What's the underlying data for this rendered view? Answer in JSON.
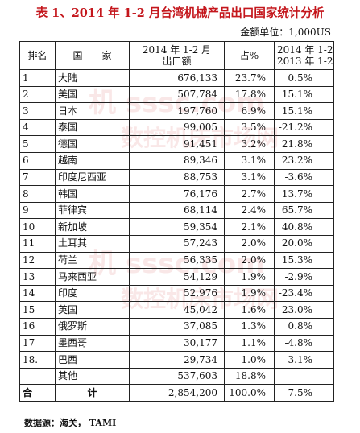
{
  "title": "表 1、2014 年 1-2 月台湾机械产品出口国家统计分析",
  "unit_label": "金额单位：1,000US",
  "columns": {
    "rank": "排名",
    "country": "国　　家",
    "export_line1": "2014 年 1-2 月",
    "export_line2": "出口额",
    "share": "占%",
    "growth_line1": "2014 年 1-2 月/",
    "growth_line2": "2013 年 1-2 月"
  },
  "rows": [
    {
      "rank": "1",
      "country": "大陆",
      "value": "676,133",
      "share": "23.7%",
      "growth": "0.5%"
    },
    {
      "rank": "2",
      "country": "美国",
      "value": "507,784",
      "share": "17.8%",
      "growth": "15.1%"
    },
    {
      "rank": "3",
      "country": "日本",
      "value": "197,760",
      "share": "6.9%",
      "growth": "15.1%"
    },
    {
      "rank": "4",
      "country": "泰国",
      "value": "99,005",
      "share": "3.5%",
      "growth": "-21.2%"
    },
    {
      "rank": "5",
      "country": "德国",
      "value": "91,451",
      "share": "3.2%",
      "growth": "21.8%"
    },
    {
      "rank": "6",
      "country": "越南",
      "value": "89,346",
      "share": "3.1%",
      "growth": "23.2%"
    },
    {
      "rank": "7",
      "country": "印度尼西亚",
      "value": "88,753",
      "share": "3.1%",
      "growth": "-3.6%"
    },
    {
      "rank": "8",
      "country": "韩国",
      "value": "76,176",
      "share": "2.7%",
      "growth": "13.7%"
    },
    {
      "rank": "9",
      "country": "菲律宾",
      "value": "68,114",
      "share": "2.4%",
      "growth": "65.7%"
    },
    {
      "rank": "10",
      "country": "新加坡",
      "value": "59,354",
      "share": "2.1%",
      "growth": "40.8%"
    },
    {
      "rank": "11",
      "country": "土耳其",
      "value": "57,243",
      "share": "2.0%",
      "growth": "20.0%"
    },
    {
      "rank": "12",
      "country": "荷兰",
      "value": "56,335",
      "share": "2.0%",
      "growth": "15.3%"
    },
    {
      "rank": "13",
      "country": "马来西亚",
      "value": "54,129",
      "share": "1.9%",
      "growth": "-2.9%"
    },
    {
      "rank": "14",
      "country": "印度",
      "value": "52,976",
      "share": "1.9%",
      "growth": "-23.4%"
    },
    {
      "rank": "15",
      "country": "英国",
      "value": "45,042",
      "share": "1.6%",
      "growth": "23.0%"
    },
    {
      "rank": "16",
      "country": "俄罗斯",
      "value": "37,085",
      "share": "1.3%",
      "growth": "0.8%"
    },
    {
      "rank": "17",
      "country": "墨西哥",
      "value": "30,177",
      "share": "1.1%",
      "growth": "-4.8%"
    },
    {
      "rank": "18.",
      "country": "巴西",
      "value": "29,734",
      "share": "1.0%",
      "growth": "3.1%"
    },
    {
      "rank": "",
      "country": "其他",
      "value": "537,603",
      "share": "18.8%",
      "growth": ""
    }
  ],
  "total": {
    "label_left": "合",
    "label_right": "计",
    "value": "2,854,200",
    "share": "100.0%",
    "growth": "7.5%"
  },
  "source": "数据源：海关， TAMI",
  "watermark": {
    "line1": "机 sssc.com",
    "line2": "数控机床市场网"
  }
}
